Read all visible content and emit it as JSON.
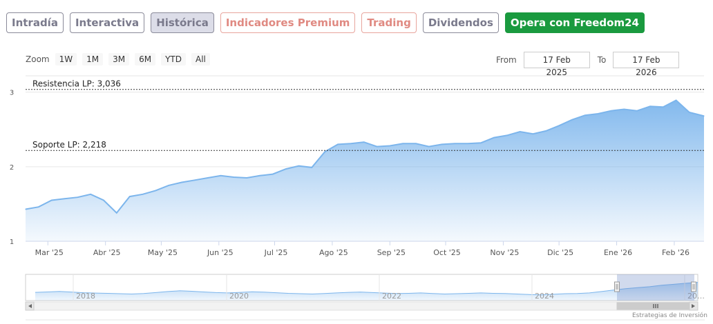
{
  "tabs": [
    {
      "label": "Intradía",
      "style": "gray"
    },
    {
      "label": "Interactiva",
      "style": "gray"
    },
    {
      "label": "Histórica",
      "style": "active"
    },
    {
      "label": "Indicadores Premium",
      "style": "salmon"
    },
    {
      "label": "Trading",
      "style": "salmon"
    },
    {
      "label": "Dividendos",
      "style": "gray"
    },
    {
      "label": "Opera con Freedom24",
      "style": "green"
    }
  ],
  "zoom": {
    "label": "Zoom",
    "buttons": [
      "1W",
      "1M",
      "3M",
      "6M",
      "YTD",
      "All"
    ]
  },
  "range": {
    "from_label": "From",
    "from_value": "17 Feb 2025",
    "to_label": "To",
    "to_value": "17 Feb 2026"
  },
  "colors": {
    "line": "#7cb5ec",
    "fill_top": "#7cb5ec",
    "level_line": "#333333",
    "freedom_btn": "#1a9a3f"
  },
  "chart_data": {
    "type": "area",
    "ylim": [
      1,
      3.2
    ],
    "y_ticks": [
      1,
      2,
      3
    ],
    "x_tick_labels": [
      "Mar '25",
      "Abr '25",
      "May '25",
      "Jun '25",
      "Jul '25",
      "Ago '25",
      "Sep '25",
      "Oct '25",
      "Nov '25",
      "Dic '25",
      "Ene '26",
      "Feb '26"
    ],
    "x_start": "2025-02-17",
    "x_end": "2026-02-17",
    "x": [
      "2025-02-17",
      "2025-02-24",
      "2025-03-03",
      "2025-03-10",
      "2025-03-17",
      "2025-03-24",
      "2025-03-31",
      "2025-04-07",
      "2025-04-14",
      "2025-04-21",
      "2025-04-28",
      "2025-05-05",
      "2025-05-12",
      "2025-05-19",
      "2025-05-26",
      "2025-06-02",
      "2025-06-09",
      "2025-06-16",
      "2025-06-23",
      "2025-06-30",
      "2025-07-07",
      "2025-07-14",
      "2025-07-21",
      "2025-07-28",
      "2025-08-04",
      "2025-08-11",
      "2025-08-18",
      "2025-08-25",
      "2025-09-01",
      "2025-09-08",
      "2025-09-15",
      "2025-09-22",
      "2025-09-29",
      "2025-10-06",
      "2025-10-13",
      "2025-10-20",
      "2025-10-27",
      "2025-11-03",
      "2025-11-10",
      "2025-11-17",
      "2025-11-24",
      "2025-12-01",
      "2025-12-08",
      "2025-12-15",
      "2025-12-22",
      "2025-12-29",
      "2026-01-05",
      "2026-01-12",
      "2026-01-19",
      "2026-01-26",
      "2026-02-02",
      "2026-02-09",
      "2026-02-17"
    ],
    "values": [
      1.43,
      1.46,
      1.55,
      1.57,
      1.59,
      1.63,
      1.55,
      1.38,
      1.6,
      1.63,
      1.68,
      1.75,
      1.79,
      1.82,
      1.85,
      1.88,
      1.86,
      1.85,
      1.88,
      1.9,
      1.97,
      2.01,
      1.99,
      2.2,
      2.3,
      2.31,
      2.33,
      2.27,
      2.28,
      2.31,
      2.31,
      2.27,
      2.3,
      2.31,
      2.31,
      2.32,
      2.39,
      2.42,
      2.47,
      2.44,
      2.48,
      2.55,
      2.63,
      2.69,
      2.71,
      2.75,
      2.77,
      2.75,
      2.81,
      2.8,
      2.89,
      2.73,
      2.68
    ],
    "annotations": [
      {
        "label": "Resistencia LP: 3,036",
        "value": 3.036
      },
      {
        "label": "Soporte LP: 2,218",
        "value": 2.218
      }
    ],
    "grid": true,
    "legend": "none"
  },
  "navigator": {
    "labels": [
      "2018",
      "2020",
      "2022",
      "2024",
      "20…"
    ],
    "values": [
      1.72,
      1.76,
      1.82,
      1.75,
      1.68,
      1.65,
      1.62,
      1.58,
      1.55,
      1.6,
      1.7,
      1.8,
      1.88,
      1.83,
      1.76,
      1.7,
      1.66,
      1.72,
      1.78,
      1.74,
      1.68,
      1.62,
      1.58,
      1.55,
      1.6,
      1.66,
      1.72,
      1.75,
      1.7,
      1.65,
      1.6,
      1.62,
      1.66,
      1.6,
      1.55,
      1.58,
      1.62,
      1.66,
      1.62,
      1.6,
      1.55,
      1.5,
      1.46,
      1.52,
      1.58,
      1.6,
      1.66,
      1.8,
      1.95,
      2.1,
      2.2,
      2.3,
      2.45,
      2.55,
      2.65,
      2.75
    ]
  },
  "credit": "Estrategias de Inversión"
}
